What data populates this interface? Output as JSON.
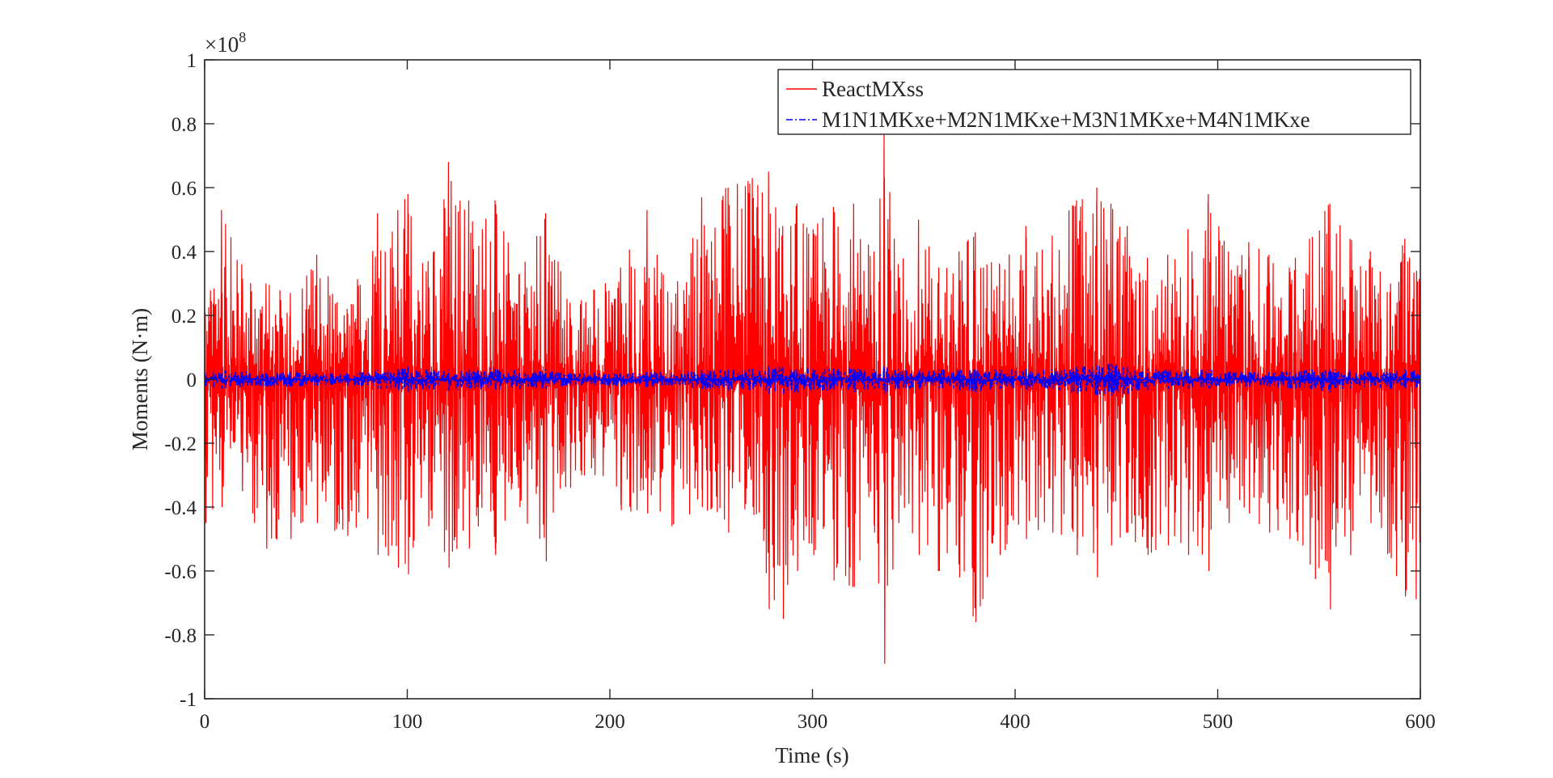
{
  "chart_data": {
    "type": "line",
    "title": "",
    "xlabel": "Time (s)",
    "ylabel": "Moments (N·m)",
    "xlim": [
      0,
      600
    ],
    "ylim": [
      -1,
      1
    ],
    "y_scale_label": "×10",
    "y_scale_exponent": "8",
    "y_multiplier": 100000000,
    "grid": false,
    "legend_position": "top-right",
    "x_ticks": [
      0,
      100,
      200,
      300,
      400,
      500,
      600
    ],
    "x_tick_labels": [
      "0",
      "100",
      "200",
      "300",
      "400",
      "500",
      "600"
    ],
    "y_ticks": [
      -1,
      -0.8,
      -0.6,
      -0.4,
      -0.2,
      0,
      0.2,
      0.4,
      0.6,
      0.8,
      1
    ],
    "y_tick_labels": [
      "-1",
      "-0.8",
      "-0.6",
      "-0.4",
      "-0.2",
      "0",
      "0.2",
      "0.4",
      "0.6",
      "0.8",
      "1"
    ],
    "envelope_times": [
      0,
      8,
      18,
      30,
      42,
      55,
      70,
      85,
      95,
      100,
      110,
      120,
      130,
      143,
      155,
      168,
      180,
      192,
      205,
      218,
      230,
      245,
      258,
      270,
      278,
      285,
      292,
      300,
      310,
      320,
      330,
      335,
      342,
      352,
      362,
      372,
      380,
      392,
      405,
      418,
      430,
      440,
      447,
      455,
      465,
      475,
      485,
      495,
      505,
      515,
      525,
      535,
      545,
      555,
      565,
      575,
      585,
      592,
      600
    ],
    "series": [
      {
        "name": "ReactMXss",
        "color": "#ff0000",
        "line_style": "solid",
        "envelope_pos": [
          0.2,
          0.53,
          0.36,
          0.3,
          0.27,
          0.39,
          0.22,
          0.52,
          0.53,
          0.58,
          0.37,
          0.68,
          0.56,
          0.56,
          0.33,
          0.52,
          0.24,
          0.28,
          0.35,
          0.53,
          0.24,
          0.57,
          0.6,
          0.63,
          0.65,
          0.48,
          0.55,
          0.47,
          0.54,
          0.55,
          0.4,
          0.77,
          0.36,
          0.5,
          0.35,
          0.4,
          0.46,
          0.36,
          0.48,
          0.45,
          0.56,
          0.6,
          0.55,
          0.48,
          0.38,
          0.39,
          0.47,
          0.58,
          0.4,
          0.43,
          0.39,
          0.35,
          0.44,
          0.55,
          0.44,
          0.4,
          0.3,
          0.44,
          0.33
        ],
        "envelope_neg": [
          -0.45,
          -0.4,
          -0.35,
          -0.53,
          -0.5,
          -0.45,
          -0.49,
          -0.55,
          -0.59,
          -0.61,
          -0.46,
          -0.59,
          -0.53,
          -0.55,
          -0.4,
          -0.57,
          -0.34,
          -0.3,
          -0.41,
          -0.42,
          -0.46,
          -0.4,
          -0.48,
          -0.4,
          -0.72,
          -0.75,
          -0.6,
          -0.55,
          -0.63,
          -0.65,
          -0.48,
          -0.89,
          -0.45,
          -0.55,
          -0.6,
          -0.62,
          -0.76,
          -0.55,
          -0.5,
          -0.48,
          -0.55,
          -0.62,
          -0.52,
          -0.48,
          -0.55,
          -0.52,
          -0.55,
          -0.6,
          -0.45,
          -0.42,
          -0.48,
          -0.5,
          -0.58,
          -0.72,
          -0.55,
          -0.45,
          -0.56,
          -0.68,
          -0.72
        ]
      },
      {
        "name": "M1N1MKxe+M2N1MKxe+M3N1MKxe+M4N1MKxe",
        "color": "#0000ff",
        "line_style": "dash-dot",
        "envelope_pos": [
          0.02,
          0.03,
          0.025,
          0.02,
          0.025,
          0.02,
          0.02,
          0.03,
          0.035,
          0.04,
          0.03,
          0.03,
          0.03,
          0.035,
          0.03,
          0.03,
          0.02,
          0.02,
          0.02,
          0.025,
          0.02,
          0.03,
          0.03,
          0.035,
          0.04,
          0.04,
          0.035,
          0.035,
          0.035,
          0.035,
          0.03,
          0.04,
          0.03,
          0.03,
          0.03,
          0.03,
          0.035,
          0.03,
          0.035,
          0.03,
          0.04,
          0.045,
          0.05,
          0.04,
          0.03,
          0.03,
          0.03,
          0.03,
          0.025,
          0.025,
          0.025,
          0.025,
          0.03,
          0.035,
          0.03,
          0.025,
          0.025,
          0.03,
          0.03
        ],
        "envelope_neg": [
          -0.02,
          -0.03,
          -0.025,
          -0.025,
          -0.025,
          -0.02,
          -0.02,
          -0.03,
          -0.035,
          -0.04,
          -0.03,
          -0.035,
          -0.03,
          -0.035,
          -0.03,
          -0.03,
          -0.02,
          -0.02,
          -0.025,
          -0.025,
          -0.02,
          -0.03,
          -0.035,
          -0.035,
          -0.045,
          -0.045,
          -0.04,
          -0.035,
          -0.035,
          -0.04,
          -0.03,
          -0.045,
          -0.03,
          -0.03,
          -0.03,
          -0.035,
          -0.04,
          -0.03,
          -0.035,
          -0.03,
          -0.045,
          -0.05,
          -0.05,
          -0.045,
          -0.035,
          -0.03,
          -0.03,
          -0.03,
          -0.025,
          -0.025,
          -0.025,
          -0.03,
          -0.03,
          -0.04,
          -0.03,
          -0.025,
          -0.03,
          -0.03,
          -0.035
        ]
      }
    ]
  }
}
